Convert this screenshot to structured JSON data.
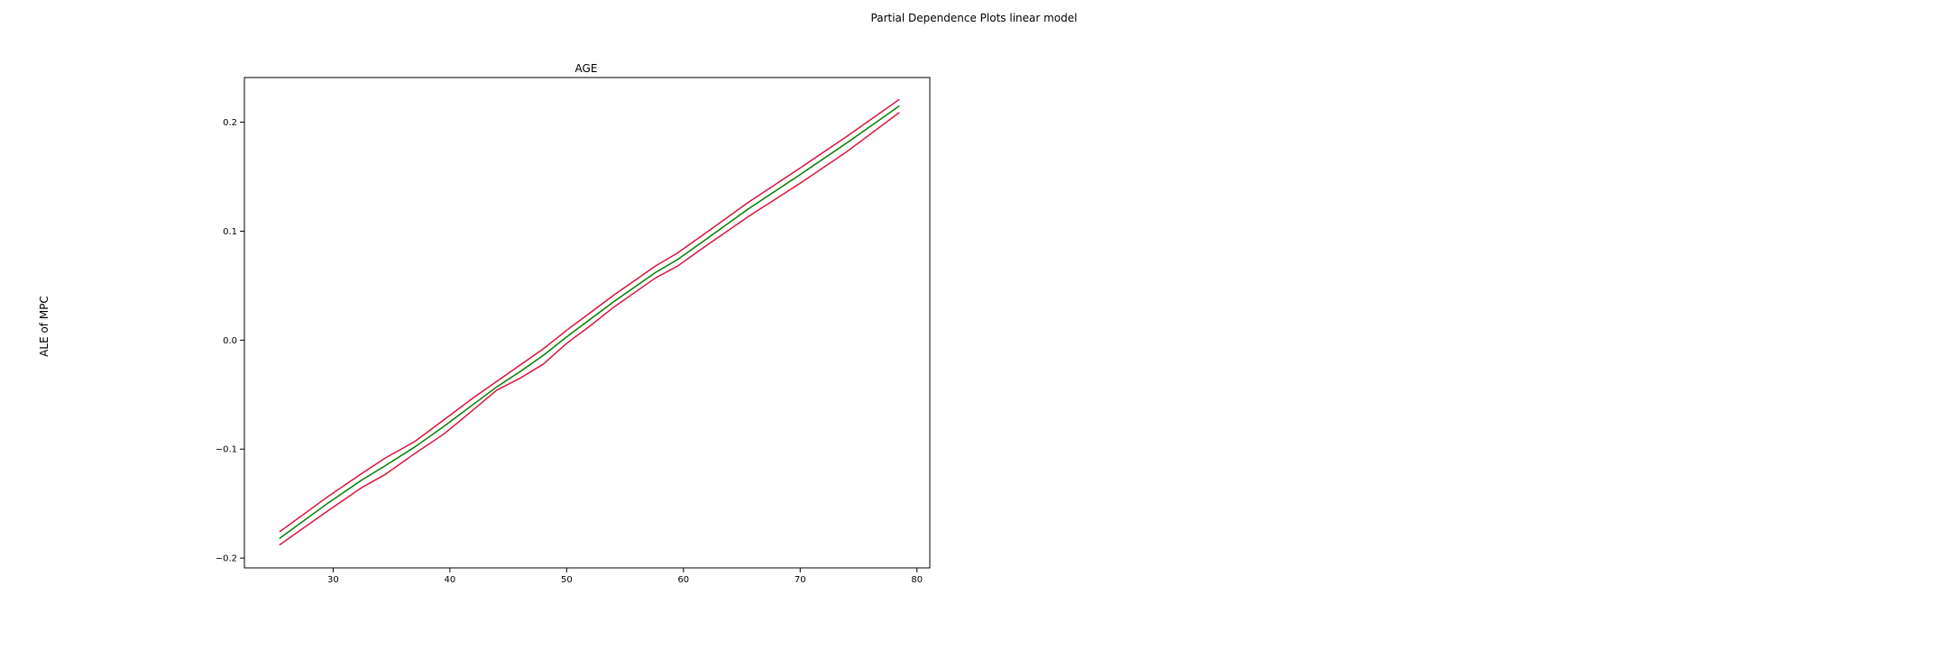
{
  "figure": {
    "suptitle": "Partial Dependence Plots linear model",
    "ylabel": "ALE of MPC"
  },
  "chart_data": {
    "type": "line",
    "title": "AGE",
    "xlabel": "",
    "ylabel": "ALE of MPC",
    "xlim": [
      22.4,
      81.1
    ],
    "ylim": [
      -0.209,
      0.241
    ],
    "xticks": [
      30,
      40,
      50,
      60,
      70,
      80
    ],
    "yticks": [
      -0.2,
      -0.1,
      0.0,
      0.1,
      0.2
    ],
    "grid": false,
    "legend": "none",
    "colors": {
      "ale": "#008000",
      "ci": "#dc143c"
    },
    "x": [
      25.4,
      29.5,
      32.5,
      34.5,
      37,
      39.5,
      42,
      44,
      46,
      48,
      50,
      52,
      54,
      56,
      57.6,
      59.5,
      62,
      65.5,
      70,
      74,
      78.5
    ],
    "series": [
      {
        "values": [
          -0.182,
          -0.15,
          -0.128,
          -0.115,
          -0.098,
          -0.079,
          -0.059,
          -0.043,
          -0.029,
          -0.014,
          0.003,
          0.019,
          0.035,
          0.05,
          0.062,
          0.074,
          0.093,
          0.12,
          0.152,
          0.181,
          0.215
        ]
      },
      {
        "values": [
          -0.176,
          -0.144,
          -0.122,
          -0.108,
          -0.093,
          -0.073,
          -0.053,
          -0.038,
          -0.023,
          -0.008,
          0.009,
          0.025,
          0.041,
          0.056,
          0.068,
          0.08,
          0.099,
          0.126,
          0.158,
          0.187,
          0.221
        ]
      },
      {
        "values": [
          -0.188,
          -0.157,
          -0.135,
          -0.123,
          -0.104,
          -0.086,
          -0.064,
          -0.046,
          -0.035,
          -0.022,
          -0.003,
          0.013,
          0.03,
          0.045,
          0.057,
          0.068,
          0.087,
          0.113,
          0.144,
          0.173,
          0.209
        ]
      }
    ]
  }
}
